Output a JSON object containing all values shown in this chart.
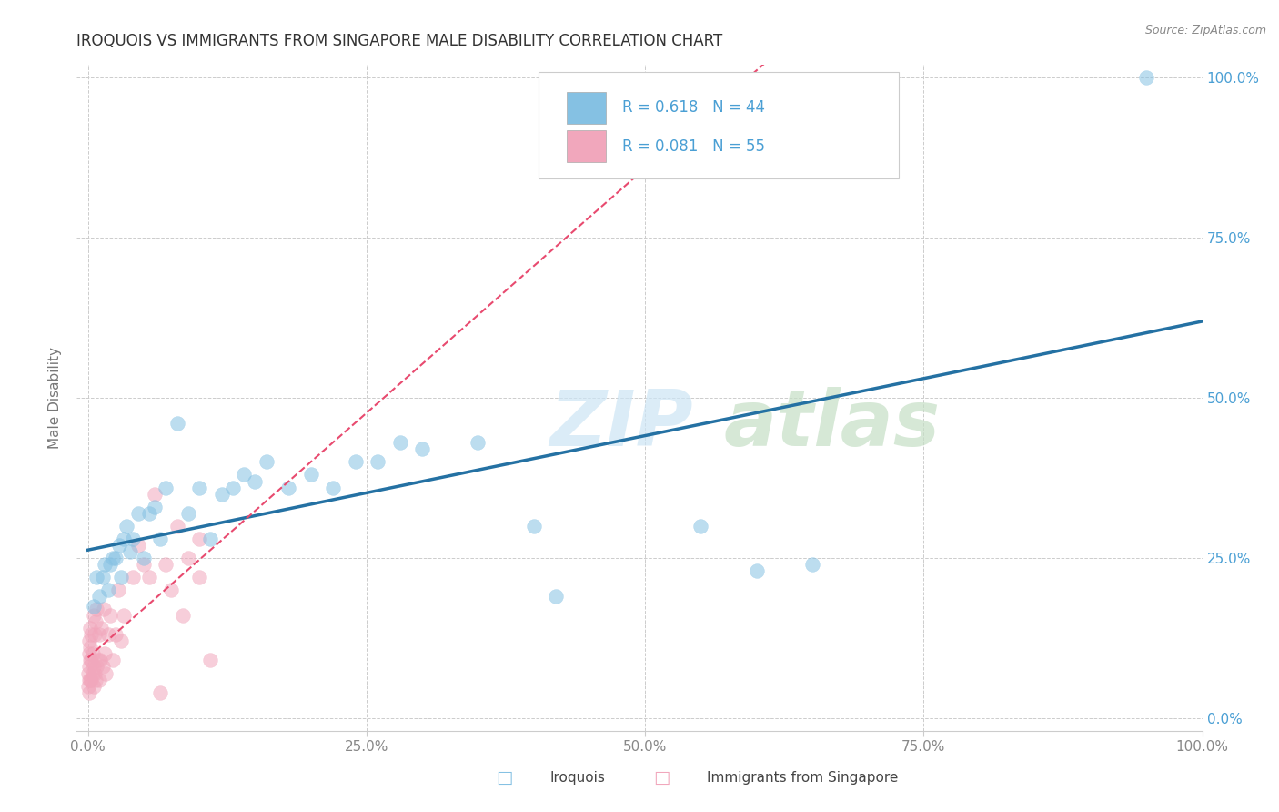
{
  "title": "IROQUOIS VS IMMIGRANTS FROM SINGAPORE MALE DISABILITY CORRELATION CHART",
  "source": "Source: ZipAtlas.com",
  "ylabel": "Male Disability",
  "xlim": [
    -0.01,
    1.0
  ],
  "ylim": [
    -0.02,
    1.02
  ],
  "xticks": [
    0.0,
    0.25,
    0.5,
    0.75,
    1.0
  ],
  "yticks": [
    0.0,
    0.25,
    0.5,
    0.75,
    1.0
  ],
  "xtick_labels": [
    "0.0%",
    "25.0%",
    "50.0%",
    "75.0%",
    "100.0%"
  ],
  "ytick_labels_right": [
    "0.0%",
    "25.0%",
    "50.0%",
    "75.0%",
    "100.0%"
  ],
  "blue_color": "#85c1e3",
  "pink_color": "#f1a7bc",
  "blue_line_color": "#2471a3",
  "pink_line_color": "#e84a6f",
  "blue_r": 0.618,
  "blue_n": 44,
  "pink_r": 0.081,
  "pink_n": 55,
  "blue_scatter_x": [
    0.005,
    0.008,
    0.01,
    0.013,
    0.015,
    0.018,
    0.02,
    0.022,
    0.025,
    0.028,
    0.03,
    0.032,
    0.035,
    0.038,
    0.04,
    0.045,
    0.05,
    0.055,
    0.06,
    0.065,
    0.07,
    0.08,
    0.09,
    0.1,
    0.11,
    0.12,
    0.13,
    0.14,
    0.15,
    0.16,
    0.18,
    0.2,
    0.22,
    0.24,
    0.26,
    0.28,
    0.3,
    0.35,
    0.4,
    0.42,
    0.55,
    0.6,
    0.65,
    0.95
  ],
  "blue_scatter_y": [
    0.175,
    0.22,
    0.19,
    0.22,
    0.24,
    0.2,
    0.24,
    0.25,
    0.25,
    0.27,
    0.22,
    0.28,
    0.3,
    0.26,
    0.28,
    0.32,
    0.25,
    0.32,
    0.33,
    0.28,
    0.36,
    0.46,
    0.32,
    0.36,
    0.28,
    0.35,
    0.36,
    0.38,
    0.37,
    0.4,
    0.36,
    0.38,
    0.36,
    0.4,
    0.4,
    0.43,
    0.42,
    0.43,
    0.3,
    0.19,
    0.3,
    0.23,
    0.24,
    1.0
  ],
  "pink_scatter_x": [
    0.0005,
    0.0005,
    0.001,
    0.001,
    0.001,
    0.001,
    0.0015,
    0.002,
    0.002,
    0.002,
    0.002,
    0.003,
    0.003,
    0.003,
    0.004,
    0.004,
    0.005,
    0.005,
    0.005,
    0.006,
    0.006,
    0.007,
    0.007,
    0.008,
    0.008,
    0.009,
    0.01,
    0.01,
    0.011,
    0.012,
    0.013,
    0.014,
    0.015,
    0.016,
    0.018,
    0.02,
    0.022,
    0.025,
    0.027,
    0.03,
    0.032,
    0.04,
    0.045,
    0.05,
    0.055,
    0.06,
    0.065,
    0.07,
    0.075,
    0.08,
    0.085,
    0.09,
    0.1,
    0.1,
    0.11
  ],
  "pink_scatter_y": [
    0.05,
    0.07,
    0.04,
    0.06,
    0.08,
    0.1,
    0.12,
    0.06,
    0.09,
    0.11,
    0.14,
    0.06,
    0.09,
    0.13,
    0.07,
    0.1,
    0.05,
    0.08,
    0.16,
    0.07,
    0.13,
    0.06,
    0.15,
    0.08,
    0.17,
    0.09,
    0.06,
    0.13,
    0.09,
    0.14,
    0.08,
    0.17,
    0.1,
    0.07,
    0.13,
    0.16,
    0.09,
    0.13,
    0.2,
    0.12,
    0.16,
    0.22,
    0.27,
    0.24,
    0.22,
    0.35,
    0.04,
    0.24,
    0.2,
    0.3,
    0.16,
    0.25,
    0.22,
    0.28,
    0.09
  ],
  "background_color": "#ffffff",
  "grid_color": "#cccccc",
  "tick_color_right": "#4a9fd4",
  "tick_color_bottom": "#888888",
  "scatter_size": 130,
  "scatter_alpha": 0.55,
  "legend_label_blue": "Iroquois",
  "legend_label_pink": "Immigrants from Singapore"
}
